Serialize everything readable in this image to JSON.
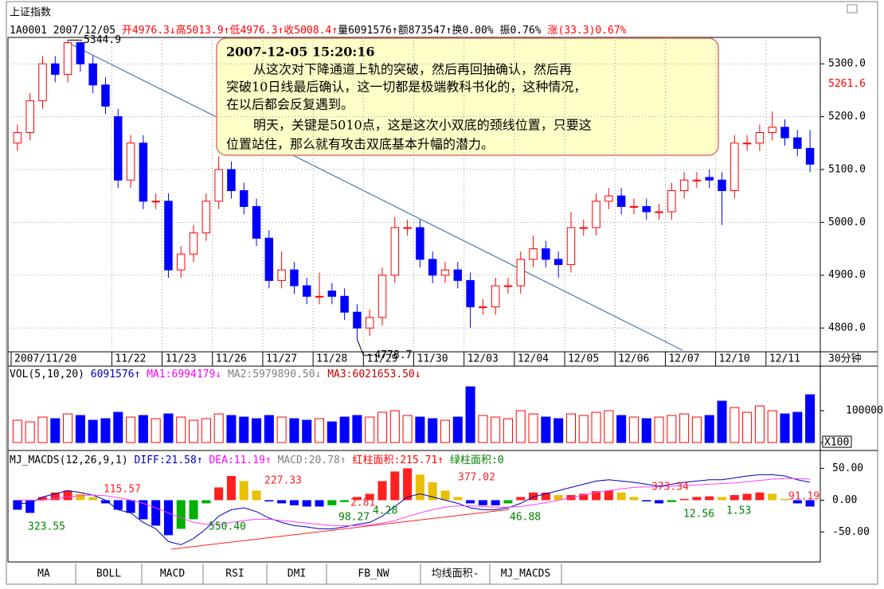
{
  "tabs": [
    "MA",
    "BOLL",
    "MACD",
    "RSI",
    "DMI",
    "FB_NW",
    "均线面积-",
    "MJ_MACDS"
  ],
  "chart_data": [
    {
      "type": "candlestick",
      "title": "上证指数",
      "info": [
        {
          "text": "1A0001 2007/12/05 ",
          "color": "#000000"
        },
        {
          "text": "开4976.3↓",
          "color": "#ff0000"
        },
        {
          "text": "高5013.9↑",
          "color": "#ff0000"
        },
        {
          "text": "低4976.3↑",
          "color": "#ff0000"
        },
        {
          "text": "收5008.4↑",
          "color": "#ff0000"
        },
        {
          "text": "量6091576↑",
          "color": "#000000"
        },
        {
          "text": "额873547↑",
          "color": "#000000"
        },
        {
          "text": "换0.00% ",
          "color": "#000000"
        },
        {
          "text": "振0.76% ",
          "color": "#000000"
        },
        {
          "text": "涨(33.3)0.67%",
          "color": "#ff0000"
        }
      ],
      "categories": [
        "2007/11/20",
        null,
        null,
        null,
        null,
        null,
        null,
        null,
        "11/22",
        null,
        null,
        null,
        "11/23",
        null,
        null,
        null,
        "11/26",
        null,
        null,
        null,
        "11/27",
        null,
        null,
        null,
        "11/28",
        null,
        null,
        null,
        "11/29",
        null,
        null,
        null,
        "11/30",
        null,
        null,
        null,
        "12/03",
        null,
        null,
        null,
        "12/04",
        null,
        null,
        null,
        "12/05",
        null,
        null,
        null,
        "12/06",
        null,
        null,
        null,
        "12/07",
        null,
        null,
        null,
        "12/10",
        null,
        null,
        null,
        "12/11",
        null,
        null,
        null
      ],
      "open": [
        5150,
        5170,
        5230,
        5300,
        5280,
        5340,
        5300,
        5260,
        5200,
        5080,
        5150,
        5040,
        5040,
        4910,
        4940,
        4980,
        5040,
        5100,
        5060,
        5030,
        4970,
        4890,
        4910,
        4880,
        4860,
        4870,
        4860,
        4830,
        4800,
        4820,
        4900,
        4990,
        4990,
        4930,
        4900,
        4910,
        4890,
        4840,
        4840,
        4880,
        4880,
        4930,
        4950,
        4930,
        4920,
        4990,
        4990,
        5040,
        5050,
        5030,
        5030,
        5020,
        5020,
        5060,
        5080,
        5085,
        5080,
        5060,
        5150,
        5150,
        5170,
        5180,
        5160,
        5140
      ],
      "high": [
        5185,
        5245,
        5315,
        5315,
        5344.9,
        5342,
        5315,
        5275,
        5215,
        5165,
        5165,
        5055,
        5055,
        4955,
        4995,
        5055,
        5125,
        5115,
        5075,
        5045,
        4985,
        4945,
        4925,
        4895,
        4905,
        4885,
        4875,
        4845,
        4835,
        4915,
        5010,
        5005,
        5005,
        4945,
        4925,
        4925,
        4905,
        4855,
        4895,
        4895,
        4945,
        4975,
        4965,
        4945,
        5020,
        5005,
        5055,
        5065,
        5065,
        5045,
        5045,
        5035,
        5075,
        5095,
        5095,
        5100,
        5095,
        5165,
        5165,
        5185,
        5210,
        5195,
        5175,
        5175
      ],
      "low": [
        5135,
        5155,
        5215,
        5265,
        5265,
        5285,
        5245,
        5205,
        5065,
        5065,
        5025,
        5025,
        4895,
        4895,
        4925,
        4965,
        5025,
        5045,
        5015,
        4955,
        4875,
        4875,
        4865,
        4845,
        4845,
        4845,
        4815,
        4778.7,
        4785,
        4805,
        4885,
        4975,
        4915,
        4885,
        4885,
        4875,
        4800,
        4825,
        4825,
        4865,
        4865,
        4915,
        4915,
        4895,
        4905,
        4975,
        4975,
        5025,
        5015,
        5015,
        5005,
        5005,
        5005,
        5045,
        5065,
        5065,
        4995,
        5045,
        5135,
        5135,
        5155,
        5145,
        5125,
        5095
      ],
      "close": [
        5170,
        5230,
        5300,
        5280,
        5340,
        5300,
        5260,
        5220,
        5080,
        5150,
        5040,
        5040,
        4910,
        4940,
        4980,
        5040,
        5100,
        5060,
        5030,
        4970,
        4890,
        4910,
        4880,
        4860,
        4860,
        4860,
        4830,
        4800,
        4820,
        4900,
        4990,
        4990,
        4930,
        4900,
        4910,
        4890,
        4840,
        4840,
        4880,
        4880,
        4930,
        4950,
        4930,
        4920,
        4990,
        4990,
        5040,
        5050,
        5030,
        5030,
        5020,
        5020,
        5060,
        5080,
        5080,
        5080,
        5060,
        5150,
        5150,
        5170,
        5180,
        5160,
        5140,
        5110
      ],
      "up_color": "#ff0000",
      "down_color": "#0000ff",
      "ylim": [
        4755,
        5350
      ],
      "yticks": [
        {
          "value": 4800,
          "label": "4800.0"
        },
        {
          "value": 4900,
          "label": "4900.0"
        },
        {
          "value": 5000,
          "label": "5000.0"
        },
        {
          "value": 5100,
          "label": "5100.0"
        },
        {
          "value": 5200,
          "label": "5200.0"
        },
        {
          "value": 5300,
          "label": "5300.0"
        }
      ],
      "marker": 5261.6,
      "marker_color": "#ff0000",
      "grid": true,
      "period": "30分钟",
      "note": {
        "time": "2007-12-05 15:20:16",
        "lines": [
          "从这次对下降通道上轨的突破，然后再回抽确认，然后再",
          "突破10日线最后确认，这一切都是极端教科书化的，这种情况，",
          "在以后都会反复遇到。",
          "明天，关键是5010点，这是这次小双底的颈线位置，只要这",
          "位置站住，那么就有攻击双底基本升幅的潜力。"
        ]
      }
    },
    {
      "type": "bar",
      "info": [
        {
          "text": "VOL(5,10,20) ",
          "color": "#000000"
        },
        {
          "text": "6091576↑ ",
          "color": "#0000c0"
        },
        {
          "text": "MA1:6994179↓ ",
          "color": "#ff00ff"
        },
        {
          "text": "MA2:5979890.50↓ ",
          "color": "#808080"
        },
        {
          "text": "MA3:6021653.50↓",
          "color": "#c00000"
        }
      ],
      "values": [
        70000,
        65000,
        80000,
        75000,
        90000,
        85000,
        70000,
        75000,
        95000,
        80000,
        85000,
        75000,
        90000,
        80000,
        70000,
        75000,
        90000,
        85000,
        80000,
        75000,
        85000,
        80000,
        75000,
        70000,
        75000,
        65000,
        80000,
        85000,
        80000,
        95000,
        100000,
        85000,
        80000,
        75000,
        70000,
        80000,
        175000,
        85000,
        80000,
        75000,
        100000,
        90000,
        80000,
        75000,
        90000,
        85000,
        95000,
        100000,
        85000,
        80000,
        75000,
        80000,
        85000,
        90000,
        80000,
        85000,
        130000,
        110000,
        95000,
        115000,
        100000,
        90000,
        95000,
        150000
      ],
      "ylim": [
        0,
        240000
      ],
      "yticks": [
        0,
        100000
      ],
      "scale_label": "X100"
    },
    {
      "type": "macd",
      "info": [
        {
          "text": "MJ_MACDS(12,26,9,1) ",
          "color": "#000000"
        },
        {
          "text": "DIFF:21.58↑ ",
          "color": "#0000c0"
        },
        {
          "text": "DEA:11.19↑ ",
          "color": "#ff00ff"
        },
        {
          "text": "MACD:20.78↑ ",
          "color": "#808080"
        },
        {
          "text": "红柱面积:215.71↑ ",
          "color": "#ff0000"
        },
        {
          "text": "绿柱面积:0",
          "color": "#008000"
        }
      ],
      "values": [
        -15,
        -20,
        5,
        12,
        15,
        10,
        5,
        -5,
        -15,
        -20,
        -30,
        -40,
        -55,
        -45,
        -30,
        -5,
        20,
        38,
        30,
        15,
        -2,
        -5,
        -8,
        -10,
        -10,
        -8,
        -3,
        5,
        10,
        30,
        45,
        50,
        40,
        28,
        15,
        5,
        -5,
        -8,
        -8,
        -5,
        5,
        12,
        12,
        8,
        8,
        10,
        14,
        15,
        12,
        5,
        -2,
        -5,
        -3,
        2,
        5,
        6,
        5,
        8,
        10,
        12,
        10,
        2,
        -5,
        -10
      ],
      "bar_colors": [
        "#ff2020",
        "#e8c000",
        "#0000ff",
        "#00b000"
      ],
      "series": [
        {
          "color": "#0000c0",
          "values": [
            -5,
            -5,
            5,
            10,
            15,
            12,
            8,
            0,
            -15,
            -20,
            -35,
            -45,
            -65,
            -70,
            -60,
            -45,
            -25,
            -15,
            -12,
            -18,
            -28,
            -35,
            -40,
            -42,
            -45,
            -45,
            -42,
            -38,
            -35,
            -25,
            -10,
            5,
            10,
            5,
            0,
            -5,
            -12,
            -15,
            -15,
            -12,
            -5,
            5,
            10,
            15,
            20,
            25,
            30,
            32,
            30,
            28,
            25,
            22,
            25,
            28,
            30,
            32,
            32,
            35,
            38,
            40,
            40,
            38,
            32,
            28
          ]
        },
        {
          "color": "#ff40ff",
          "values": [
            0,
            0,
            0,
            2,
            5,
            7,
            8,
            7,
            4,
            0,
            -5,
            -12,
            -20,
            -28,
            -35,
            -38,
            -38,
            -35,
            -32,
            -30,
            -30,
            -32,
            -34,
            -36,
            -38,
            -40,
            -40,
            -40,
            -39,
            -36,
            -32,
            -26,
            -20,
            -15,
            -11,
            -9,
            -9,
            -10,
            -11,
            -11,
            -10,
            -7,
            -4,
            0,
            4,
            8,
            12,
            15,
            18,
            20,
            21,
            21,
            22,
            23,
            24,
            25,
            26,
            27,
            29,
            31,
            33,
            34,
            34,
            33
          ]
        }
      ],
      "ylim": [
        -97,
        78
      ],
      "yticks": [
        {
          "value": -50,
          "label": "-50.00"
        },
        {
          "value": 0,
          "label": "0.00"
        },
        {
          "value": 50,
          "label": "50.00"
        }
      ],
      "area_labels": [
        {
          "text": "115.57",
          "color": "#ff2020"
        },
        {
          "text": "323.55",
          "color": "#008000"
        },
        {
          "text": "550.40",
          "color": "#008000"
        },
        {
          "text": "227.33",
          "color": "#ff2020"
        },
        {
          "text": "2.81",
          "color": "#ff2020"
        },
        {
          "text": "98.27",
          "color": "#008000"
        },
        {
          "text": "4.28",
          "color": "#008000"
        },
        {
          "text": "377.02",
          "color": "#ff2020"
        },
        {
          "text": "46.88",
          "color": "#008000"
        },
        {
          "text": "373.34",
          "color": "#ff2020"
        },
        {
          "text": "12.56",
          "color": "#008000"
        },
        {
          "text": "1.53",
          "color": "#008000"
        },
        {
          "text": "91.19",
          "color": "#ff2020"
        }
      ]
    }
  ]
}
